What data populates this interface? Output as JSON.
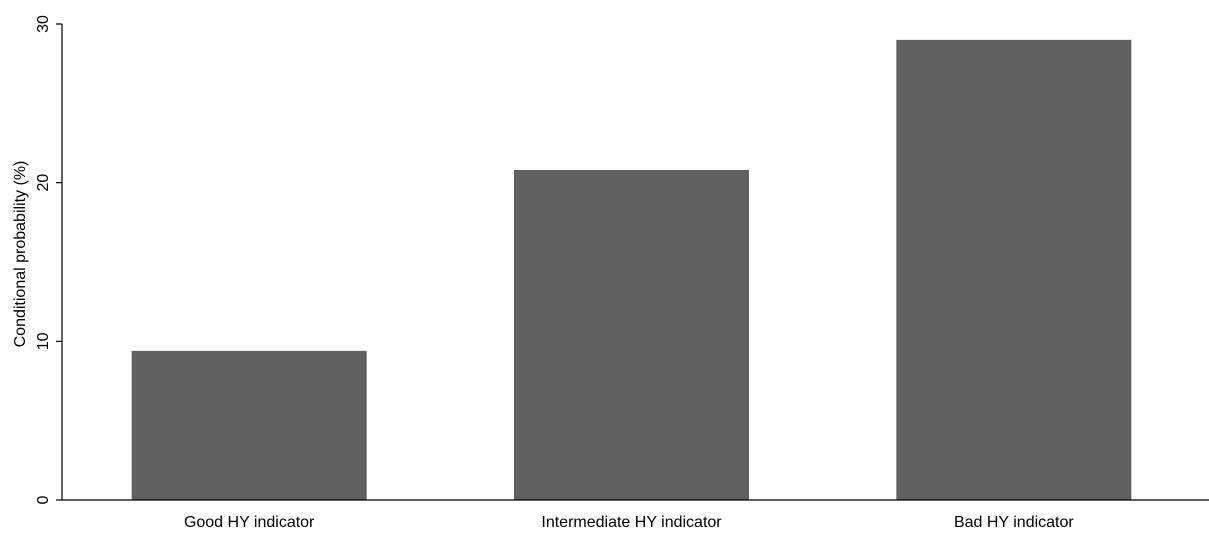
{
  "chart_data": {
    "type": "bar",
    "categories": [
      "Good HY indicator",
      "Intermediate HY indicator",
      "Bad HY indicator"
    ],
    "values": [
      9.4,
      20.8,
      29.0
    ],
    "title": "",
    "xlabel": "",
    "ylabel": "Conditional probability (%)",
    "ylim": [
      0,
      30
    ],
    "yticks": [
      "0",
      "10",
      "20",
      "30"
    ],
    "grid": false,
    "legend": "none",
    "colors": {
      "bar": "#606060",
      "axis": "#000000",
      "background": "#ffffff"
    }
  }
}
